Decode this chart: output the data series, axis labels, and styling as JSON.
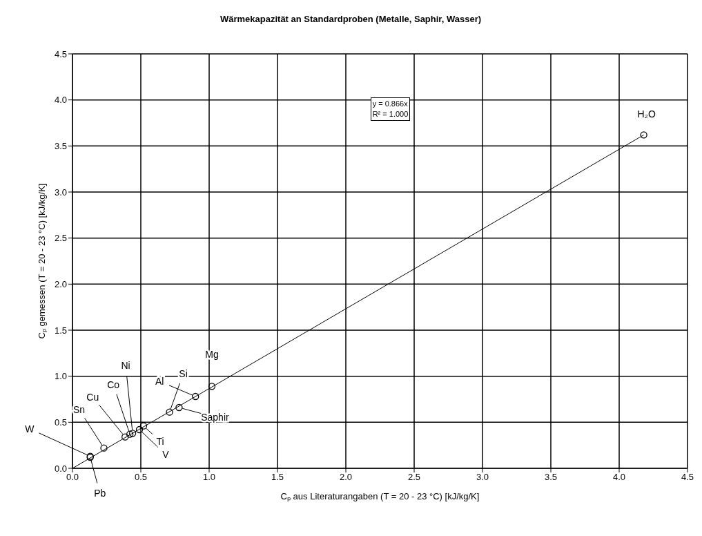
{
  "chart_data": {
    "type": "scatter",
    "title": "Wärmekapazität an Standardproben (Metalle, Saphir, Wasser)",
    "xlabel": "Cₚ aus Literaturangaben  (T = 20 - 23 °C)   [kJ/kg/K]",
    "ylabel": "Cₚ gemessen  (T = 20 - 23 °C)   [kJ/kg/K]",
    "series": [
      {
        "marker": "circle",
        "color": "#000000",
        "x": [
          0.13,
          0.13,
          0.23,
          0.385,
          0.42,
          0.44,
          0.49,
          0.52,
          0.71,
          0.78,
          0.9,
          1.02,
          4.18
        ],
        "values": [
          0.13,
          0.12,
          0.22,
          0.34,
          0.37,
          0.38,
          0.42,
          0.46,
          0.61,
          0.66,
          0.78,
          0.89,
          3.62
        ]
      },
      {
        "type": "line",
        "color": "#000000",
        "x": [
          0,
          4.18
        ],
        "values": [
          0,
          3.62
        ]
      }
    ],
    "xlim": [
      0,
      4.5
    ],
    "ylim": [
      0,
      4.5
    ],
    "xticks": [
      {
        "value": 0,
        "label": "0.0"
      },
      0.5,
      {
        "value": 1,
        "label": "1.0"
      },
      1.5,
      {
        "value": 2,
        "label": "2.0"
      },
      2.5,
      {
        "value": 3,
        "label": "3.0"
      },
      3.5,
      {
        "value": 4,
        "label": "4.0"
      },
      4.5
    ],
    "yticks": [
      {
        "value": 0,
        "label": "0.0"
      },
      0.5,
      {
        "value": 1,
        "label": "1.0"
      },
      1.5,
      {
        "value": 2,
        "label": "2.0"
      },
      2.5,
      {
        "value": 3,
        "label": "3.0"
      },
      3.5,
      {
        "value": 4,
        "label": "4.0"
      },
      4.5
    ],
    "grid": true,
    "annotations": [
      {
        "text": "W",
        "x": 0.13,
        "y": 0.13
      },
      {
        "text": "Pb",
        "x": 0.13,
        "y": 0.12
      },
      {
        "text": "Sn",
        "x": 0.23,
        "y": 0.22
      },
      {
        "text": "Cu",
        "x": 0.385,
        "y": 0.34
      },
      {
        "text": "Co",
        "x": 0.42,
        "y": 0.37
      },
      {
        "text": "Ni",
        "x": 0.44,
        "y": 0.38
      },
      {
        "text": "V",
        "x": 0.49,
        "y": 0.42
      },
      {
        "text": "Ti",
        "x": 0.52,
        "y": 0.46
      },
      {
        "text": "Si",
        "x": 0.71,
        "y": 0.61
      },
      {
        "text": "Saphir",
        "x": 0.78,
        "y": 0.66
      },
      {
        "text": "Al",
        "x": 0.9,
        "y": 0.78
      },
      {
        "text": "Mg",
        "x": 1.02,
        "y": 0.89
      },
      {
        "text": "H₂O",
        "x": 4.18,
        "y": 3.62
      },
      "y = 0.866x",
      "R² = 1.000"
    ]
  }
}
